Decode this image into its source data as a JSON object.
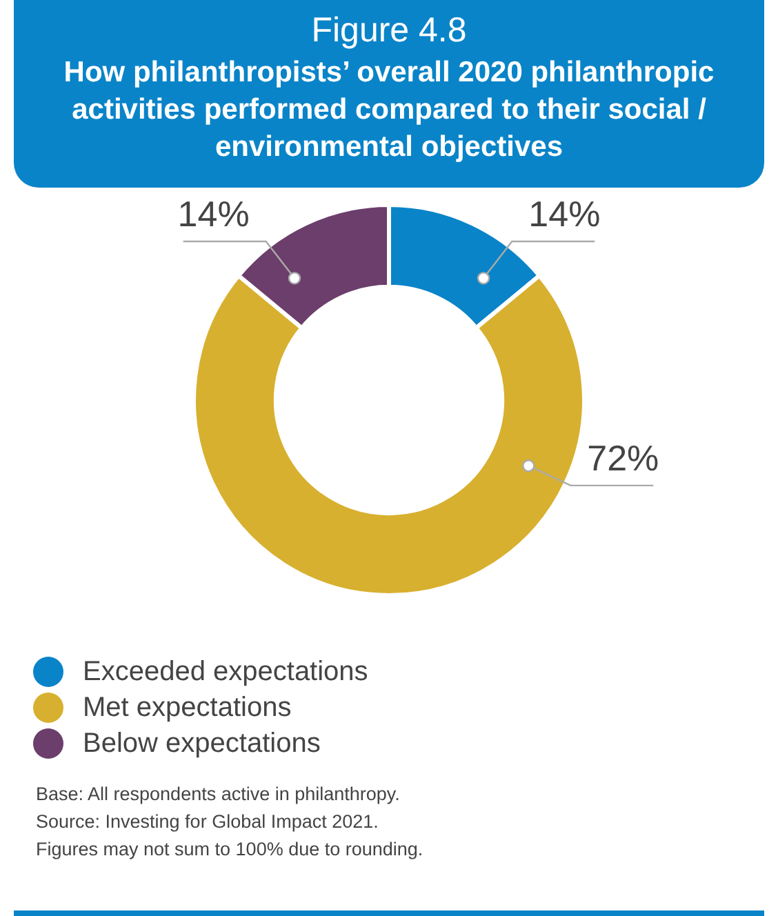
{
  "chart_data": {
    "type": "donut",
    "title": "Figure 4.8",
    "subtitle": "How philanthropists’ overall 2020 philanthropic activities performed compared to their social / environmental objectives",
    "categories": [
      "Exceeded expectations",
      "Met expectations",
      "Below expectations"
    ],
    "values": [
      14,
      72,
      14
    ],
    "colors": [
      "#0a84c8",
      "#d8b02f",
      "#6b3e6b"
    ],
    "value_labels": [
      "14%",
      "72%",
      "14%"
    ],
    "legend": "bottom left",
    "annotations": [
      "Base: All respondents active in philanthropy.",
      "Source: Investing for Global Impact 2021.",
      "Figures may not sum to 100% due to rounding."
    ]
  }
}
